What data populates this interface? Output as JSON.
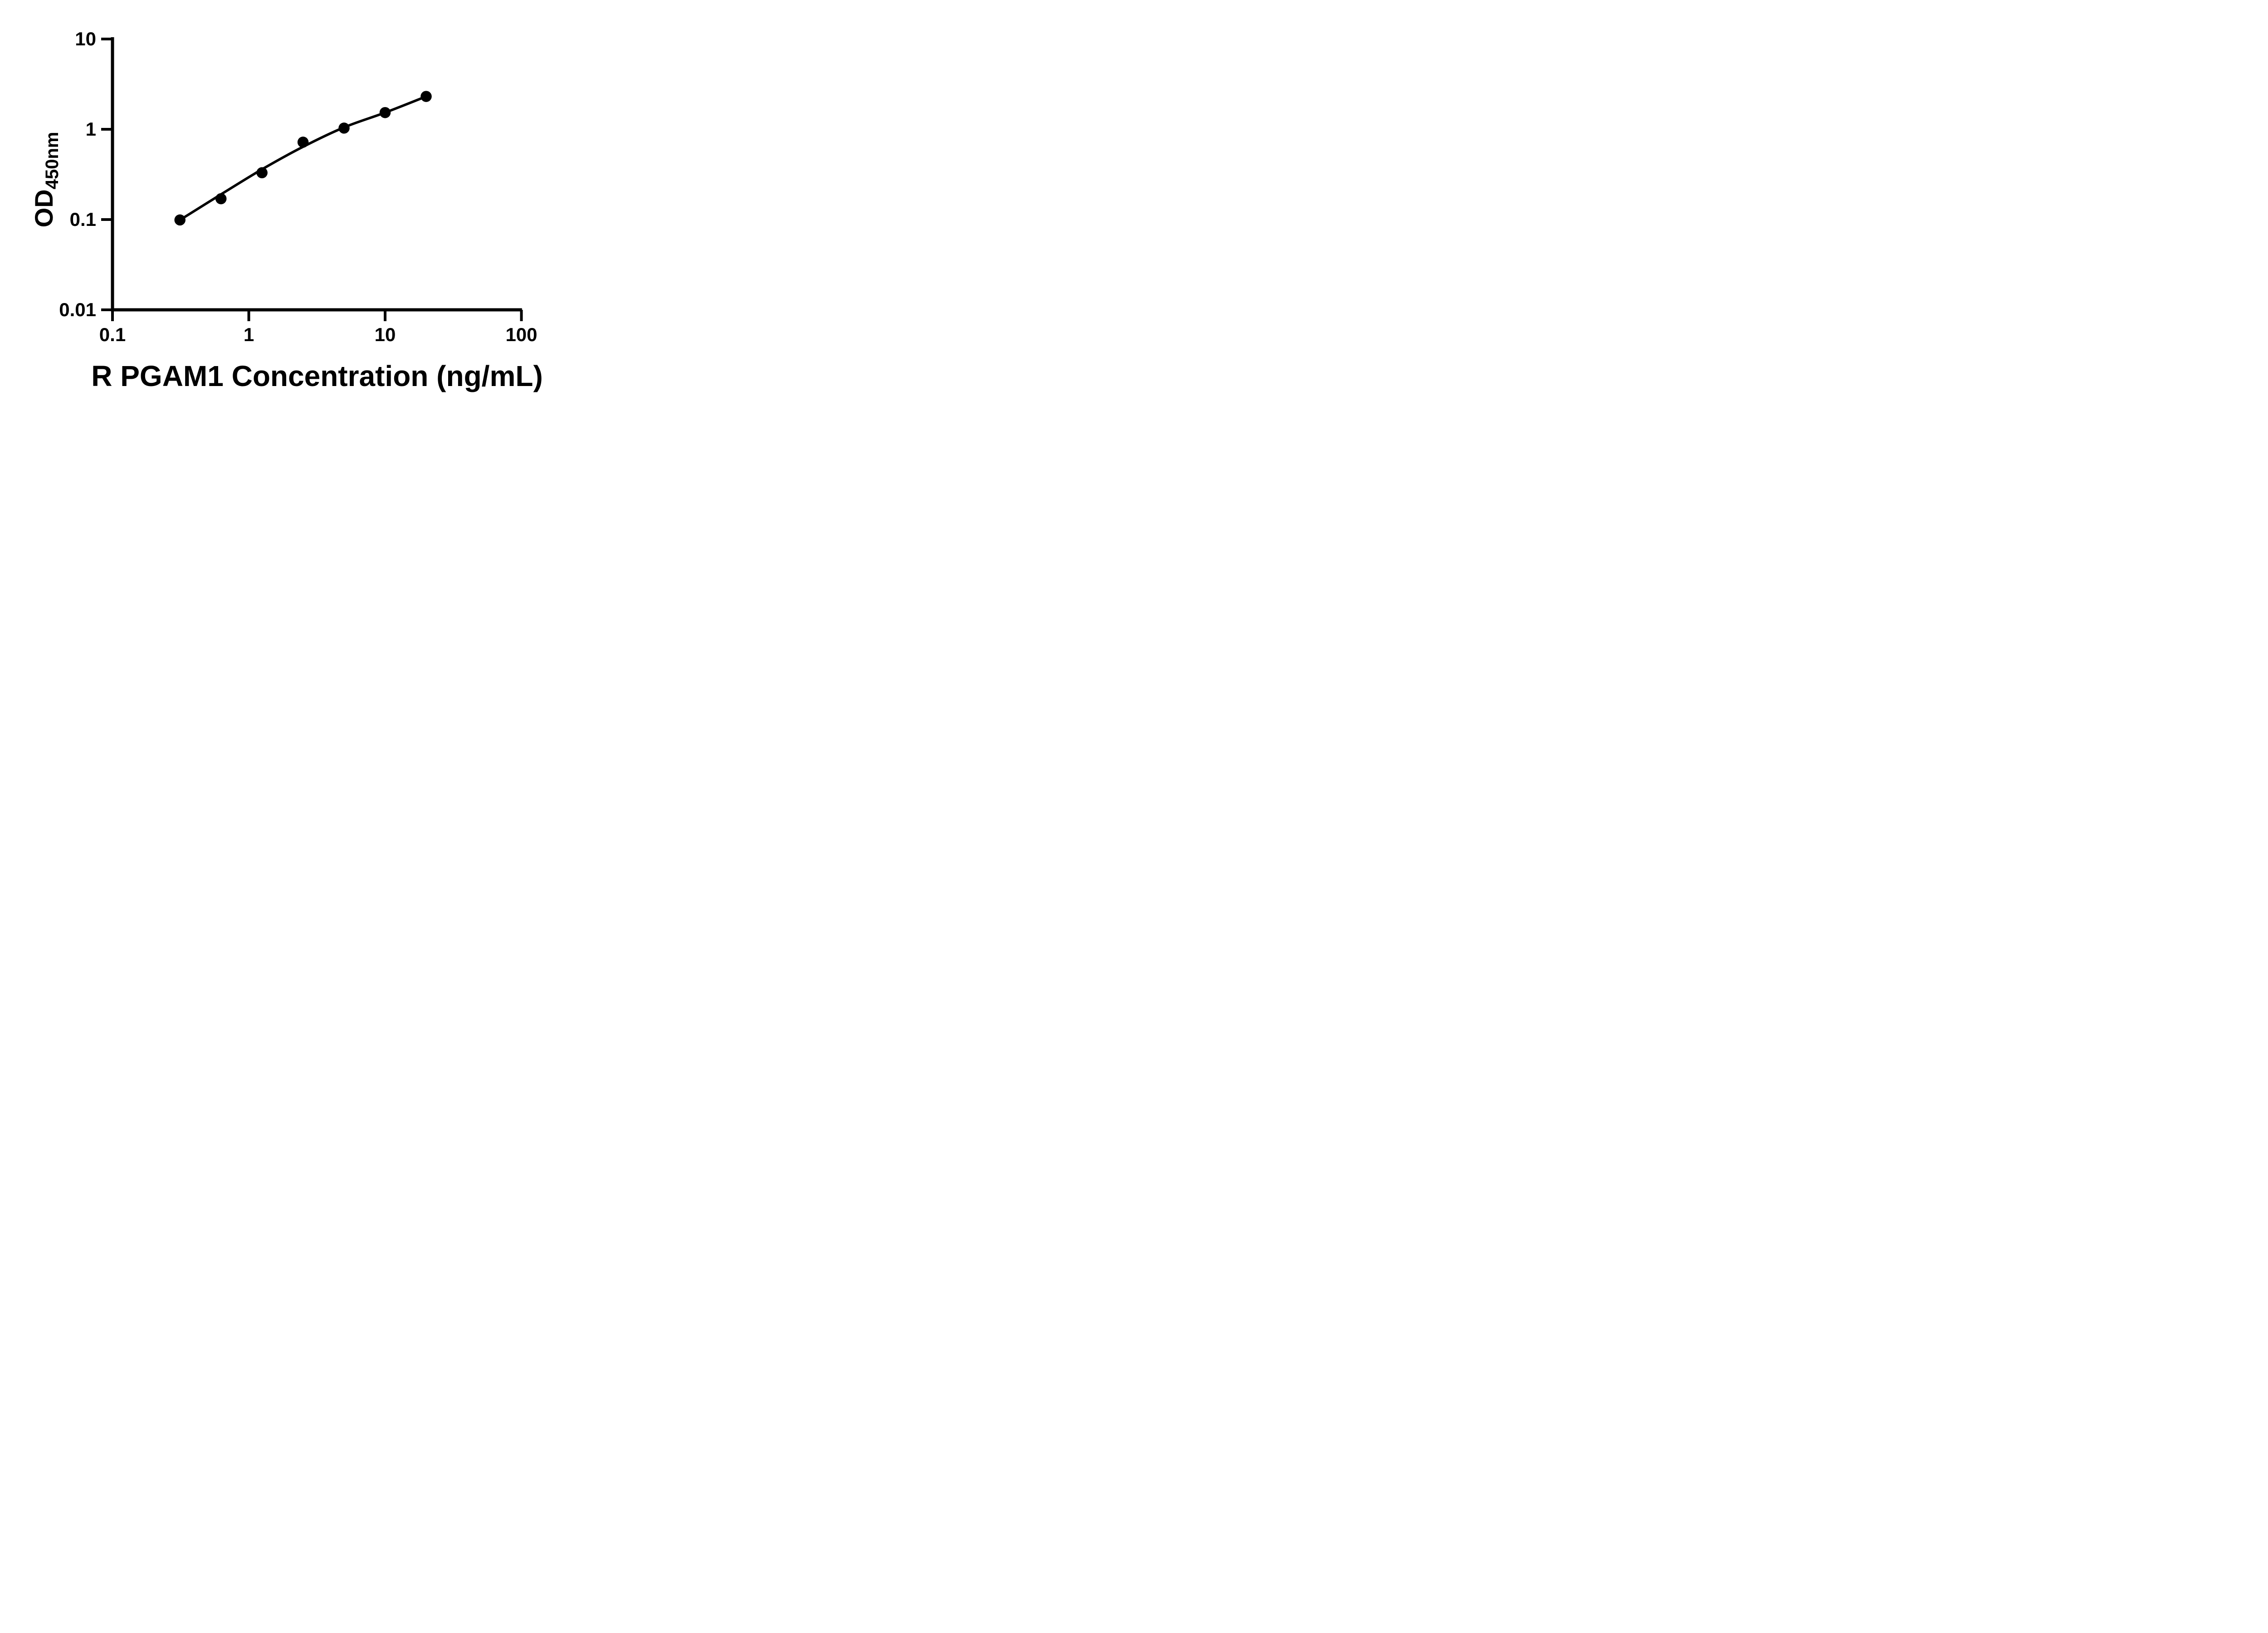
{
  "figure": {
    "background_color": "#ffffff",
    "ink_color": "#000000"
  },
  "chart_data": {
    "type": "scatter",
    "title": "",
    "xlabel": "R PGAM1 Concentration (ng/mL)",
    "ylabel_main": "OD",
    "ylabel_sub": "450nm",
    "x_scale": "log",
    "y_scale": "log",
    "xlim": [
      0.1,
      100
    ],
    "ylim": [
      0.01,
      10
    ],
    "grid": false,
    "legend": "none",
    "x_ticks": [
      {
        "value": 0.1,
        "label": "0.1"
      },
      {
        "value": 1,
        "label": "1"
      },
      {
        "value": 10,
        "label": "10"
      },
      {
        "value": 100,
        "label": "100"
      }
    ],
    "y_ticks": [
      {
        "value": 10,
        "label": "10"
      },
      {
        "value": 1,
        "label": "1"
      },
      {
        "value": 0.1,
        "label": "0.1"
      },
      {
        "value": 0.01,
        "label": "0.01"
      }
    ],
    "series": [
      {
        "name": "standard-points",
        "kind": "scatter",
        "marker": "filled-circle",
        "color": "#000000",
        "x": [
          0.3125,
          0.625,
          1.25,
          2.5,
          5,
          10,
          20
        ],
        "y": [
          0.099,
          0.17,
          0.33,
          0.72,
          1.03,
          1.53,
          2.31
        ]
      },
      {
        "name": "fitted-curve",
        "kind": "line",
        "color": "#000000",
        "x": [
          0.3125,
          0.625,
          1.25,
          2.5,
          5,
          10,
          20
        ],
        "y": [
          0.099,
          0.19,
          0.36,
          0.64,
          1.05,
          1.53,
          2.31
        ]
      }
    ]
  }
}
